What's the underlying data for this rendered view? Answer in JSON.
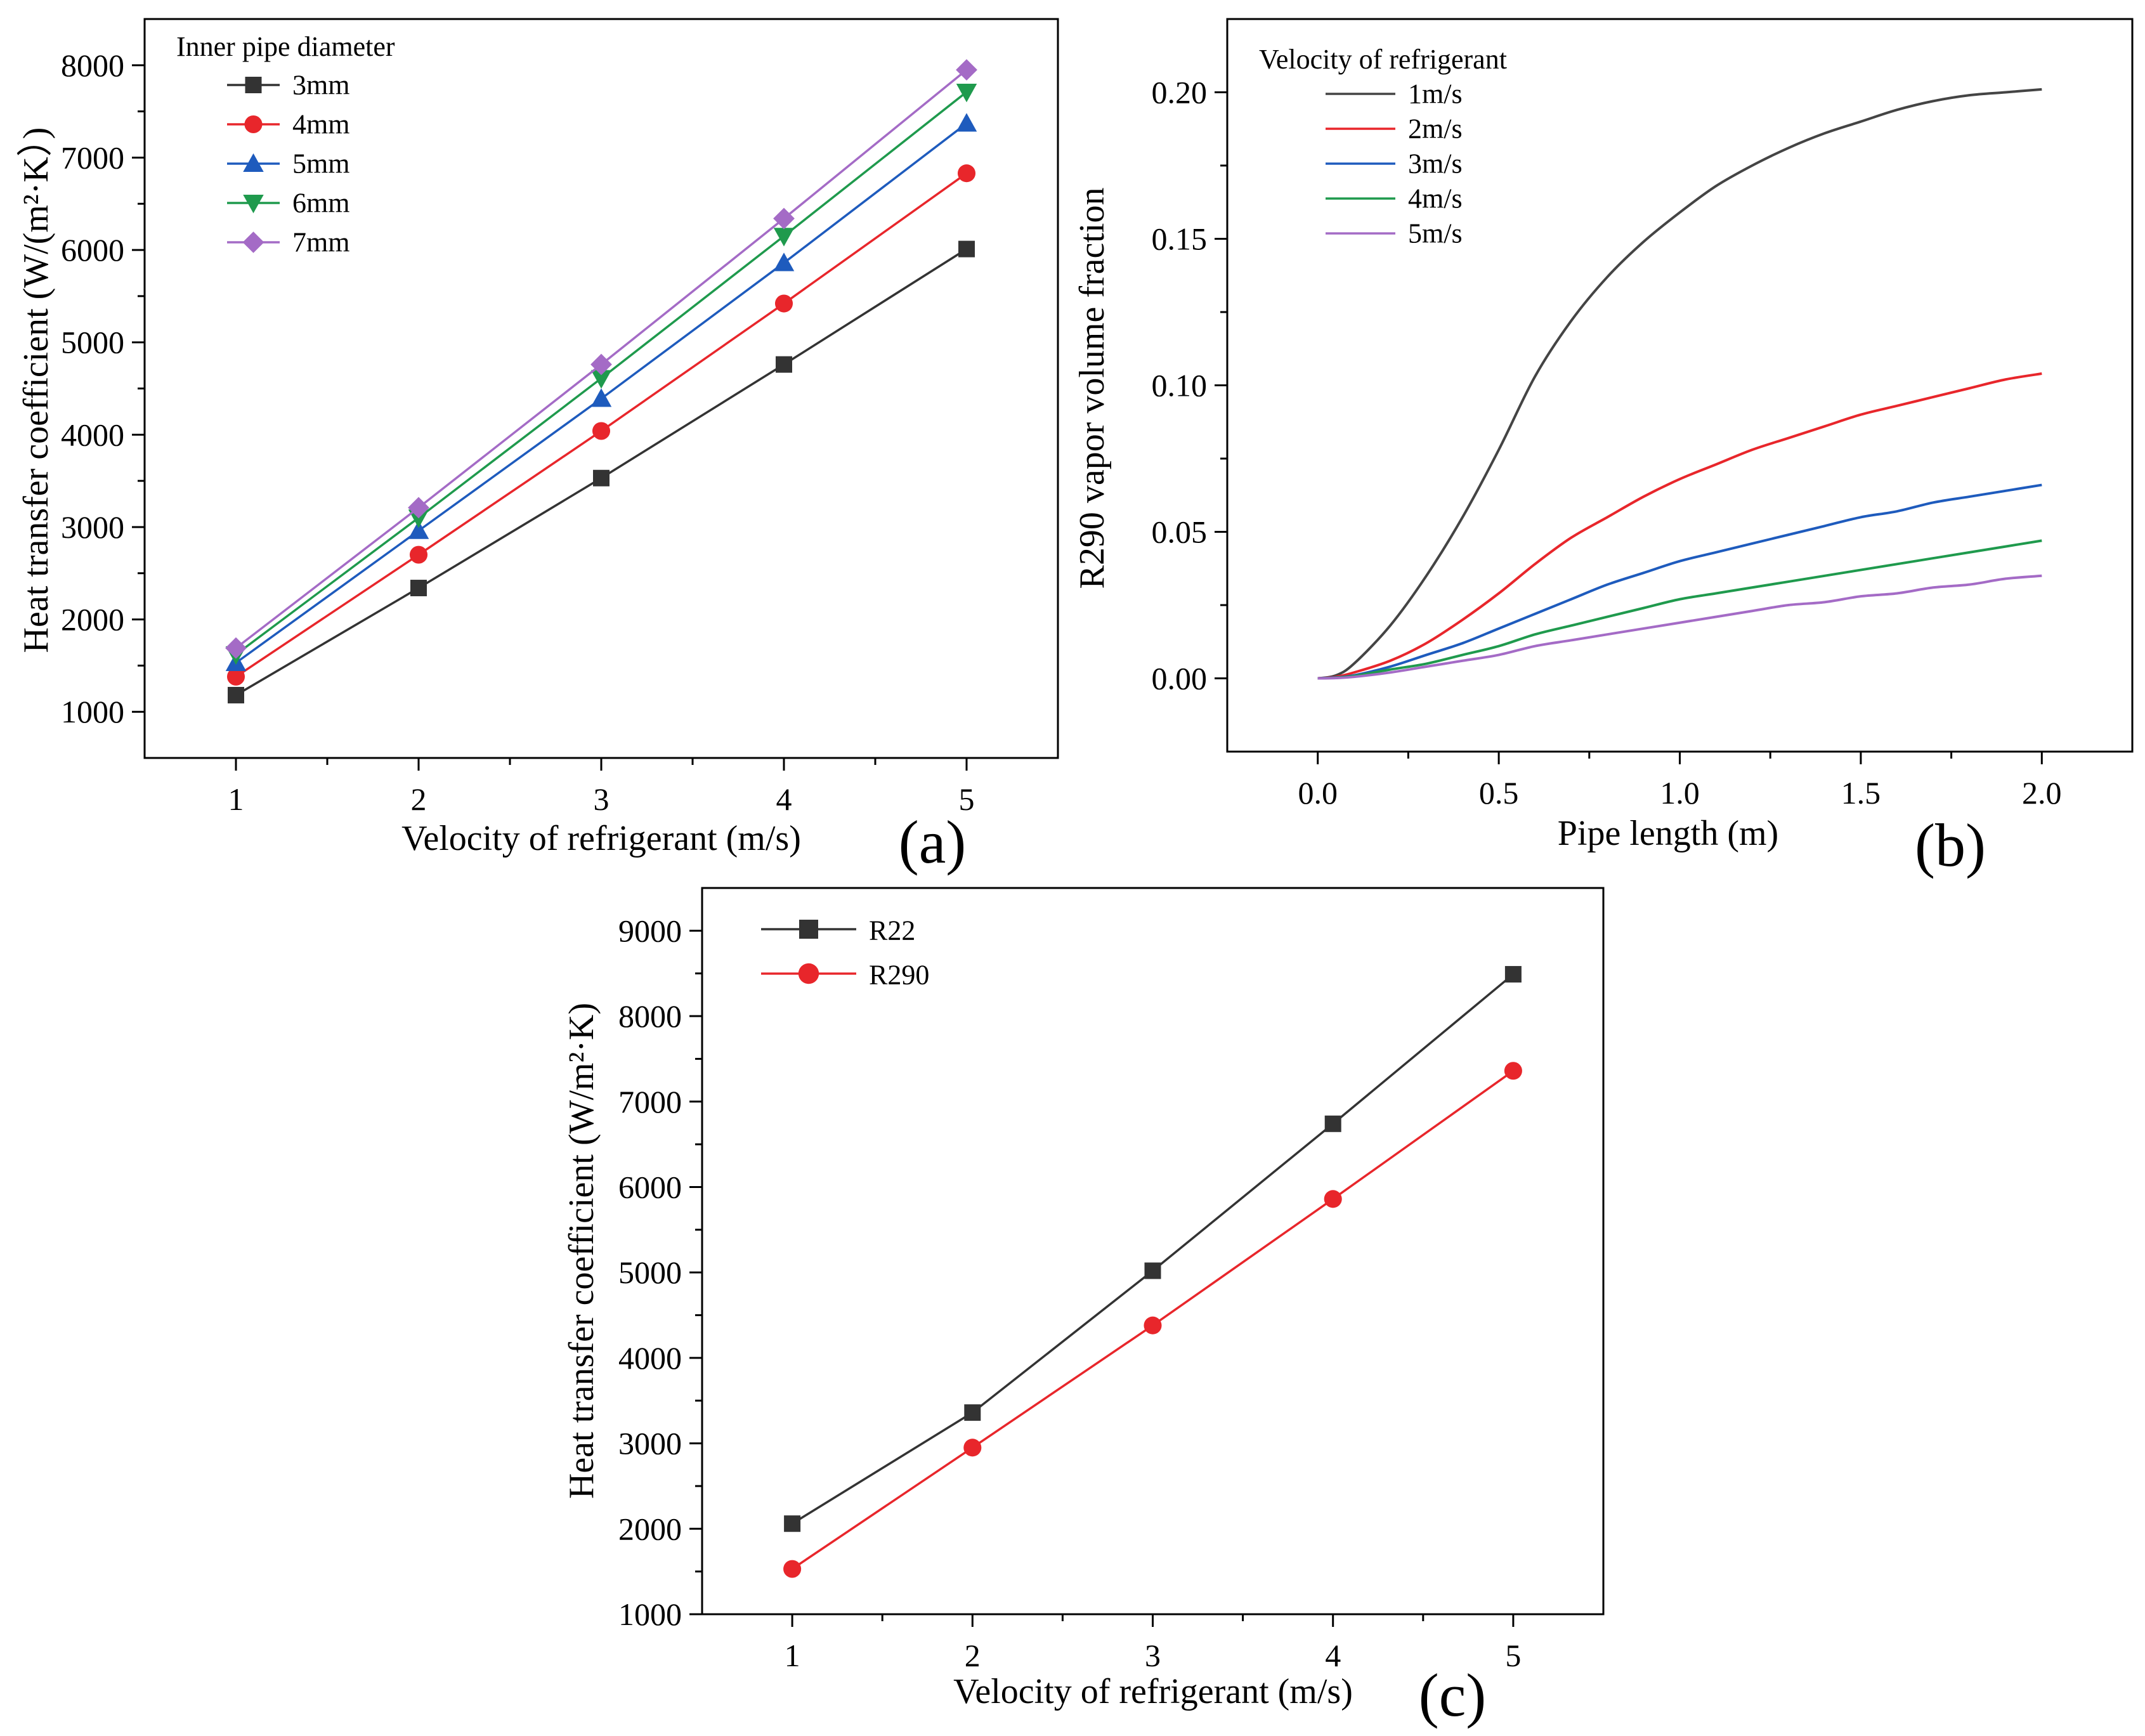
{
  "colors": {
    "black": "#333333",
    "red": "#e8262b",
    "blue": "#1e5bbd",
    "green": "#1f9a4d",
    "purple": "#a46bc6",
    "gray": "#444444"
  },
  "chart_data": [
    {
      "id": "a",
      "type": "line",
      "panel_label": "(a)",
      "xlabel": "Velocity of refrigerant (m/s)",
      "ylabel": "Heat transfer coefficient (W/(m²·K）)",
      "xlim": [
        0.5,
        5.5
      ],
      "ylim": [
        500,
        8500
      ],
      "xticks": [
        1,
        2,
        3,
        4,
        5
      ],
      "yticks": [
        1000,
        2000,
        3000,
        4000,
        5000,
        6000,
        7000,
        8000
      ],
      "legend_title": "Inner pipe diameter",
      "legend_position": "top-left",
      "x": [
        1,
        2,
        3,
        4,
        5
      ],
      "series": [
        {
          "name": "3mm",
          "color": "#333333",
          "marker": "square",
          "values": [
            1180,
            2340,
            3530,
            4760,
            6010
          ]
        },
        {
          "name": "4mm",
          "color": "#e8262b",
          "marker": "circle",
          "values": [
            1380,
            2700,
            4040,
            5420,
            6830
          ]
        },
        {
          "name": "5mm",
          "color": "#1e5bbd",
          "marker": "triangle-up",
          "values": [
            1530,
            2960,
            4390,
            5860,
            7370
          ]
        },
        {
          "name": "6mm",
          "color": "#1f9a4d",
          "marker": "triangle-down",
          "values": [
            1620,
            3100,
            4610,
            6150,
            7710
          ]
        },
        {
          "name": "7mm",
          "color": "#a46bc6",
          "marker": "diamond",
          "values": [
            1690,
            3210,
            4760,
            6340,
            7950
          ]
        }
      ]
    },
    {
      "id": "b",
      "type": "line",
      "panel_label": "(b)",
      "xlabel": "Pipe length (m)",
      "ylabel": "R290 vapor volume fraction",
      "xlim": [
        -0.25,
        2.25
      ],
      "ylim": [
        -0.025,
        0.225
      ],
      "xticks": [
        0.0,
        0.5,
        1.0,
        1.5,
        2.0
      ],
      "xtick_labels": [
        "0.0",
        "0.5",
        "1.0",
        "1.5",
        "2.0"
      ],
      "yticks": [
        0.0,
        0.05,
        0.1,
        0.15,
        0.2
      ],
      "ytick_labels": [
        "0.00",
        "0.05",
        "0.10",
        "0.15",
        "0.20"
      ],
      "legend_title": "Velocity of refrigerant",
      "legend_position": "top-left",
      "x": [
        0,
        0.05,
        0.1,
        0.2,
        0.3,
        0.4,
        0.5,
        0.6,
        0.7,
        0.8,
        0.9,
        1.0,
        1.1,
        1.2,
        1.3,
        1.4,
        1.5,
        1.6,
        1.7,
        1.8,
        1.9,
        2.0
      ],
      "series": [
        {
          "name": "1m/s",
          "color": "#444444",
          "values": [
            0,
            0.001,
            0.005,
            0.018,
            0.035,
            0.055,
            0.078,
            0.103,
            0.122,
            0.137,
            0.149,
            0.159,
            0.168,
            0.175,
            0.181,
            0.186,
            0.19,
            0.194,
            0.197,
            0.199,
            0.2,
            0.201
          ]
        },
        {
          "name": "2m/s",
          "color": "#e8262b",
          "values": [
            0,
            0.0005,
            0.002,
            0.006,
            0.012,
            0.02,
            0.029,
            0.039,
            0.048,
            0.055,
            0.062,
            0.068,
            0.073,
            0.078,
            0.082,
            0.086,
            0.09,
            0.093,
            0.096,
            0.099,
            0.102,
            0.104
          ]
        },
        {
          "name": "3m/s",
          "color": "#1e5bbd",
          "values": [
            0,
            0.0003,
            0.001,
            0.004,
            0.008,
            0.012,
            0.017,
            0.022,
            0.027,
            0.032,
            0.036,
            0.04,
            0.043,
            0.046,
            0.049,
            0.052,
            0.055,
            0.057,
            0.06,
            0.062,
            0.064,
            0.066
          ]
        },
        {
          "name": "4m/s",
          "color": "#1f9a4d",
          "values": [
            0,
            0.0002,
            0.0008,
            0.003,
            0.005,
            0.008,
            0.011,
            0.015,
            0.018,
            0.021,
            0.024,
            0.027,
            0.029,
            0.031,
            0.033,
            0.035,
            0.037,
            0.039,
            0.041,
            0.043,
            0.045,
            0.047
          ]
        },
        {
          "name": "5m/s",
          "color": "#a46bc6",
          "values": [
            0,
            0.0001,
            0.0005,
            0.002,
            0.004,
            0.006,
            0.008,
            0.011,
            0.013,
            0.015,
            0.017,
            0.019,
            0.021,
            0.023,
            0.025,
            0.026,
            0.028,
            0.029,
            0.031,
            0.032,
            0.034,
            0.035
          ]
        }
      ]
    },
    {
      "id": "c",
      "type": "line",
      "panel_label": "(c)",
      "xlabel": "Velocity of refrigerant (m/s)",
      "ylabel": "Heat transfer coefficient (W/m²·K)",
      "xlim": [
        0.5,
        5.5
      ],
      "ylim": [
        1000,
        9500
      ],
      "xticks": [
        1,
        2,
        3,
        4,
        5
      ],
      "yticks": [
        1000,
        2000,
        3000,
        4000,
        5000,
        6000,
        7000,
        8000,
        9000
      ],
      "legend_position": "top-left",
      "x": [
        1,
        2,
        3,
        4,
        5
      ],
      "series": [
        {
          "name": "R22",
          "color": "#333333",
          "marker": "square",
          "values": [
            2060,
            3360,
            5020,
            6740,
            8490
          ]
        },
        {
          "name": "R290",
          "color": "#e8262b",
          "marker": "circle",
          "values": [
            1530,
            2950,
            4380,
            5860,
            7360
          ]
        }
      ]
    }
  ]
}
